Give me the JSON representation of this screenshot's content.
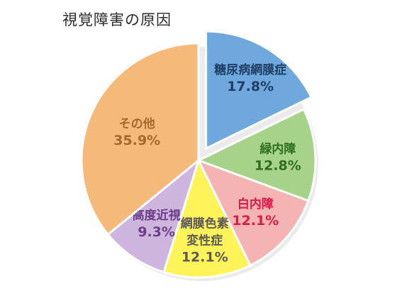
{
  "chart_data": {
    "type": "pie",
    "title": "視覚障害の原因",
    "start_angle_deg": 0,
    "direction": "clockwise",
    "exploded": [
      "糖尿病網膜症"
    ],
    "legend": "none",
    "slices": [
      {
        "label": "糖尿病網膜症",
        "value": 17.8,
        "value_text": "17.8%",
        "color": "#6fa8dc",
        "text_color": "#1f3f66"
      },
      {
        "label": "緑内障",
        "value": 12.8,
        "value_text": "12.8%",
        "color": "#a6d389",
        "text_color": "#2f6e1e"
      },
      {
        "label": "白内障",
        "value": 12.1,
        "value_text": "12.1%",
        "color": "#f4b4b4",
        "text_color": "#d81b4a"
      },
      {
        "label": "網膜色素変性症",
        "label_lines": [
          "網膜色素",
          "変性症"
        ],
        "value": 12.1,
        "value_text": "12.1%",
        "color": "#fff35a",
        "text_color": "#5a5a5a"
      },
      {
        "label": "高度近視",
        "value": 9.3,
        "value_text": "9.3%",
        "color": "#cdb5dd",
        "text_color": "#6a3f86"
      },
      {
        "label": "その他",
        "value": 35.9,
        "value_text": "35.9%",
        "color": "#f5b97a",
        "text_color": "#a5682e"
      }
    ]
  }
}
